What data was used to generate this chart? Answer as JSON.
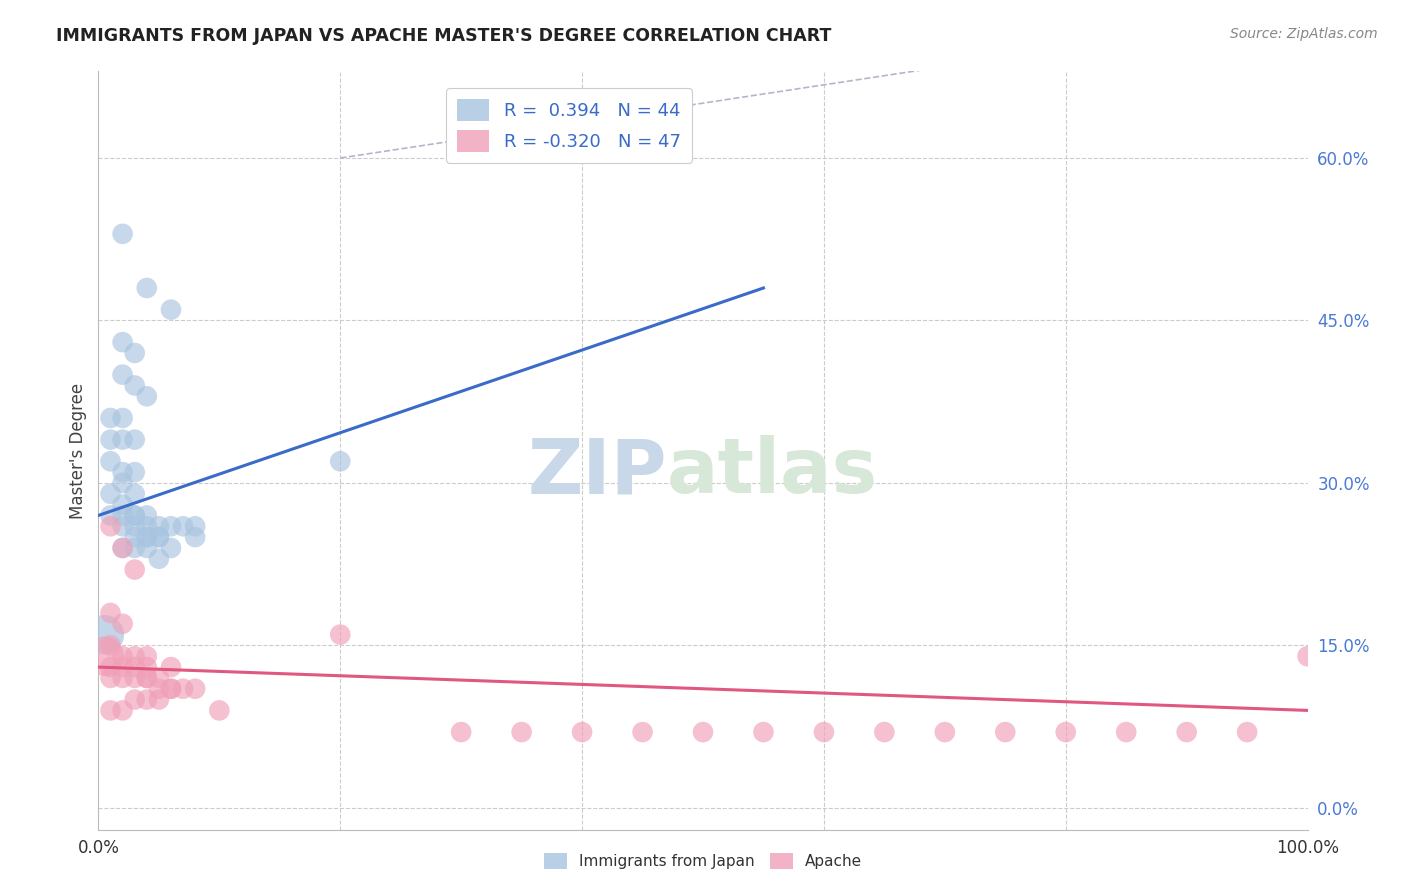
{
  "title": "IMMIGRANTS FROM JAPAN VS APACHE MASTER'S DEGREE CORRELATION CHART",
  "source_text": "Source: ZipAtlas.com",
  "ylabel": "Master's Degree",
  "legend_R1": "R =  0.394",
  "legend_N1": "N = 44",
  "legend_R2": "R = -0.320",
  "legend_N2": "N = 47",
  "legend_label1": "Immigrants from Japan",
  "legend_label2": "Apache",
  "xlim": [
    0,
    100
  ],
  "ylim": [
    -2,
    68
  ],
  "ytick_values": [
    0,
    15,
    30,
    45,
    60
  ],
  "xtick_values": [
    0,
    100
  ],
  "xtick_labels": [
    "0.0%",
    "100.0%"
  ],
  "blue_color": "#a8c4e0",
  "pink_color": "#f0a0b8",
  "blue_line_color": "#3a6bc9",
  "pink_line_color": "#e05880",
  "diag_line_color": "#b0b8c8",
  "watermark_color": "#c8d8e8",
  "background_color": "#ffffff",
  "grid_color": "#cccccc",
  "tick_label_color": "#4a7ad4",
  "blue_line_x0": 0,
  "blue_line_y0": 27,
  "blue_line_x1": 55,
  "blue_line_y1": 48,
  "pink_line_x0": 0,
  "pink_line_y0": 13,
  "pink_line_x1": 100,
  "pink_line_y1": 9,
  "blue_scatter_x": [
    2,
    4,
    6,
    2,
    3,
    2,
    3,
    4,
    1,
    2,
    1,
    2,
    3,
    1,
    2,
    3,
    2,
    3,
    1,
    2,
    1,
    2,
    3,
    4,
    5,
    6,
    7,
    8,
    3,
    4,
    5,
    6,
    2,
    3,
    4,
    5,
    3,
    4,
    2,
    3,
    4,
    5,
    20,
    8
  ],
  "blue_scatter_y": [
    53,
    48,
    46,
    43,
    42,
    40,
    39,
    38,
    36,
    36,
    34,
    34,
    34,
    32,
    31,
    31,
    30,
    29,
    29,
    28,
    27,
    27,
    27,
    26,
    26,
    26,
    26,
    25,
    25,
    25,
    25,
    24,
    24,
    24,
    24,
    23,
    27,
    27,
    26,
    26,
    25,
    25,
    32,
    26
  ],
  "pink_scatter_x": [
    1,
    2,
    3,
    1,
    2,
    1,
    2,
    3,
    4,
    1,
    2,
    3,
    4,
    1,
    2,
    3,
    4,
    5,
    6,
    7,
    8,
    5,
    4,
    6,
    30,
    35,
    40,
    45,
    50,
    55,
    60,
    65,
    70,
    75,
    80,
    85,
    90,
    95,
    100,
    20,
    10,
    6,
    5,
    4,
    3,
    2,
    1
  ],
  "pink_scatter_y": [
    26,
    24,
    22,
    18,
    17,
    15,
    14,
    14,
    14,
    13,
    13,
    13,
    12,
    12,
    12,
    12,
    12,
    11,
    11,
    11,
    11,
    12,
    13,
    13,
    7,
    7,
    7,
    7,
    7,
    7,
    7,
    7,
    7,
    7,
    7,
    7,
    7,
    7,
    14,
    16,
    9,
    11,
    10,
    10,
    10,
    9,
    9
  ],
  "large_blue_x": 0.5,
  "large_blue_y": 16,
  "large_blue_size": 800,
  "large_pink_x": 0.5,
  "large_pink_y": 14,
  "large_pink_size": 800
}
